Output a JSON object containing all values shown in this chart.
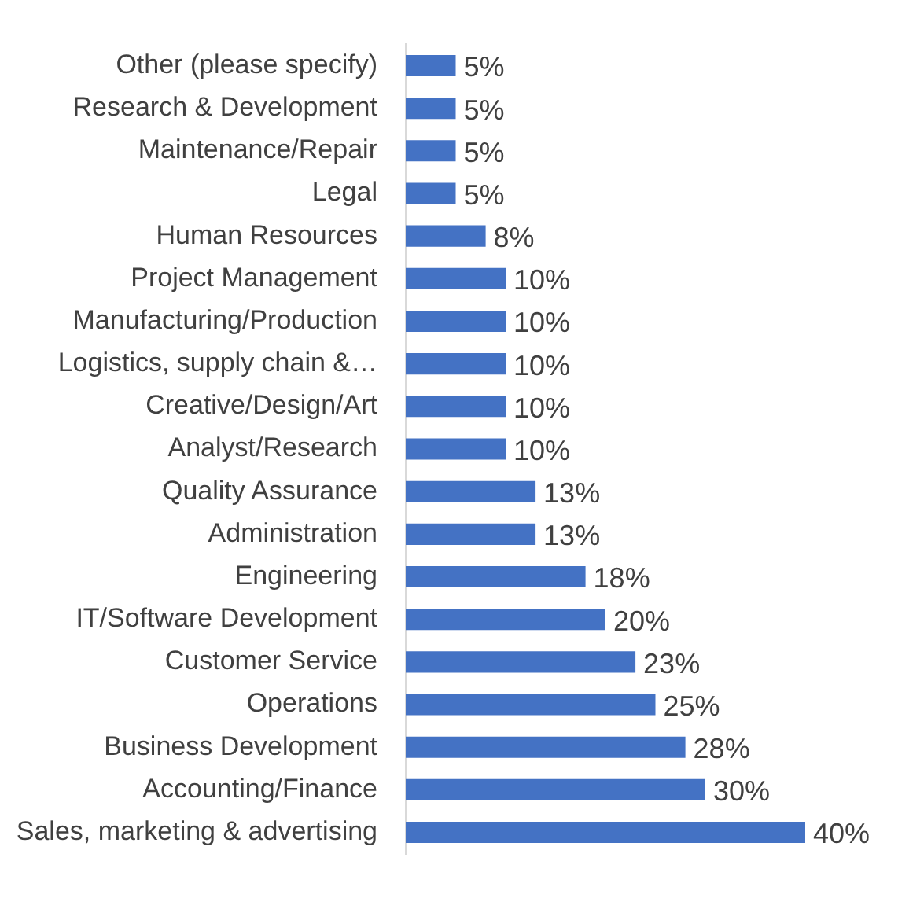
{
  "chart_data": {
    "type": "bar",
    "orientation": "horizontal",
    "categories": [
      "Other (please specify)",
      "Research & Development",
      "Maintenance/Repair",
      "Legal",
      "Human Resources",
      "Project Management",
      "Manufacturing/Production",
      "Logistics, supply chain &…",
      "Creative/Design/Art",
      "Analyst/Research",
      "Quality Assurance",
      "Administration",
      "Engineering",
      "IT/Software Development",
      "Customer Service",
      "Operations",
      "Business Development",
      "Accounting/Finance",
      "Sales, marketing & advertising"
    ],
    "values": [
      5,
      5,
      5,
      5,
      8,
      10,
      10,
      10,
      10,
      10,
      13,
      13,
      18,
      20,
      23,
      25,
      28,
      30,
      40
    ],
    "value_labels": [
      "5%",
      "5%",
      "5%",
      "5%",
      "8%",
      "10%",
      "10%",
      "10%",
      "10%",
      "10%",
      "13%",
      "13%",
      "18%",
      "20%",
      "23%",
      "25%",
      "28%",
      "30%",
      "40%"
    ],
    "color": "#4472c4",
    "tick_labels": "y",
    "legend": false
  }
}
